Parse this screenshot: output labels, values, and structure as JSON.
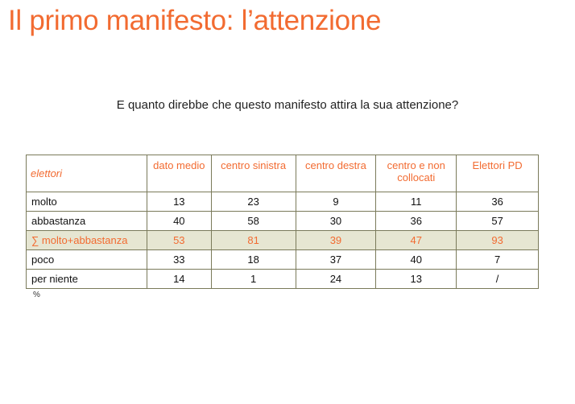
{
  "slide": {
    "title": "Il primo manifesto: l’attenzione",
    "question": "E quanto direbbe che questo manifesto attira la sua attenzione?",
    "footnote": "%"
  },
  "colors": {
    "accent": "#f26b31",
    "highlight_row_bg": "#e6e6d2",
    "border": "#7a7a5a"
  },
  "table": {
    "headers": [
      "elettori",
      "dato medio",
      "centro sinistra",
      "centro destra",
      "centro e non collocati",
      "Elettori PD"
    ],
    "rows": [
      {
        "label": "molto",
        "values": [
          "13",
          "23",
          "9",
          "11",
          "36"
        ]
      },
      {
        "label": "abbastanza",
        "values": [
          "40",
          "58",
          "30",
          "36",
          "57"
        ]
      },
      {
        "label": "∑ molto+abbastanza",
        "values": [
          "53",
          "81",
          "39",
          "47",
          "93"
        ],
        "highlight": true
      },
      {
        "label": "poco",
        "values": [
          "33",
          "18",
          "37",
          "40",
          "7"
        ]
      },
      {
        "label": "per niente",
        "values": [
          "14",
          "1",
          "24",
          "13",
          "/"
        ]
      }
    ]
  }
}
